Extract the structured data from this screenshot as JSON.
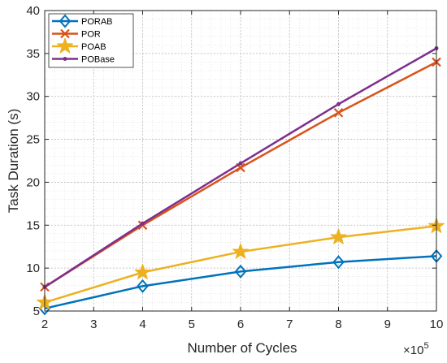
{
  "chart_data": {
    "type": "line",
    "xlabel": "Number of Cycles",
    "ylabel": "Task Duration (s)",
    "x_multiplier_label": "×10",
    "x_multiplier_exp": "5",
    "xlim": [
      2,
      10
    ],
    "ylim": [
      5,
      40
    ],
    "xticks": [
      "2",
      "3",
      "4",
      "5",
      "6",
      "7",
      "8",
      "9",
      "10"
    ],
    "yticks": [
      "5",
      "10",
      "15",
      "20",
      "25",
      "30",
      "35",
      "40"
    ],
    "grid": true,
    "minor_grid": true,
    "legend_position": "top-left",
    "x": [
      2,
      4,
      6,
      8,
      10
    ],
    "series": [
      {
        "name": "PORAB",
        "color": "#0072BD",
        "marker": "diamond",
        "values": [
          5.3,
          7.9,
          9.6,
          10.7,
          11.4
        ]
      },
      {
        "name": "POR",
        "color": "#D95319",
        "marker": "x",
        "values": [
          7.8,
          15.0,
          21.7,
          28.1,
          34.0
        ]
      },
      {
        "name": "POAB",
        "color": "#EDB120",
        "marker": "star",
        "values": [
          6.0,
          9.5,
          11.9,
          13.6,
          14.9
        ]
      },
      {
        "name": "POBase",
        "color": "#7E2F8E",
        "marker": "dot",
        "values": [
          7.8,
          15.2,
          22.2,
          29.1,
          35.6
        ]
      }
    ]
  }
}
